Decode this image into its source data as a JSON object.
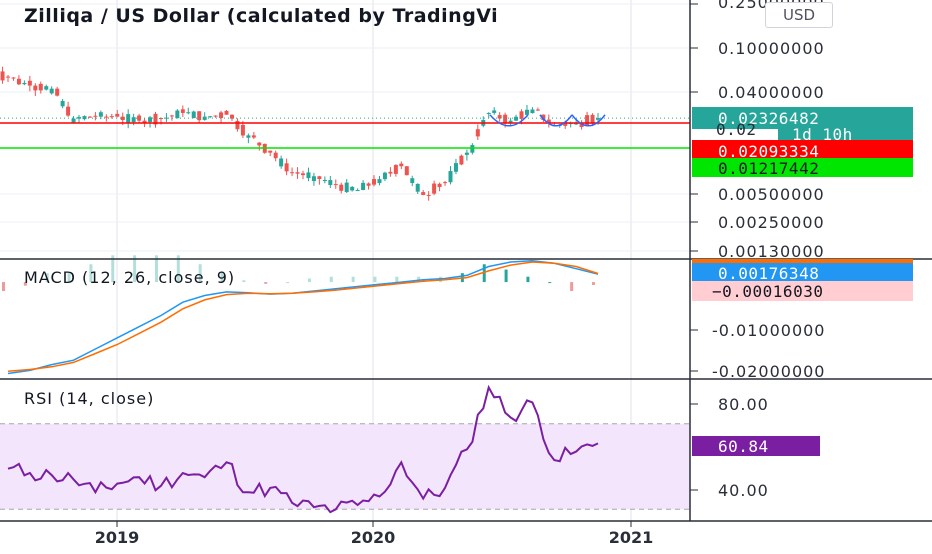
{
  "header": {
    "title": "Zilliqa / US Dollar (calculated by TradingVi",
    "currency_button": "USD"
  },
  "colors": {
    "up": "#26a69a",
    "down": "#ef5350",
    "macd_line": "#2196f3",
    "signal_line": "#ff6d00",
    "rsi_line": "#7b1fa2",
    "rsi_band": "#f3e5fb",
    "support_red": "#ff0000",
    "support_green": "#00e600",
    "arc": "#2962ff"
  },
  "price_axis": {
    "labels": [
      "0.25000000",
      "0.10000000",
      "0.04000000",
      "0.00500000",
      "0.00250000",
      "0.00130000"
    ]
  },
  "macd_axis": {
    "labels": [
      "-0.01000000",
      "-0.02000000"
    ]
  },
  "rsi_axis": {
    "labels": [
      "80.00",
      "40.00"
    ]
  },
  "time_axis": {
    "labels": [
      "2019",
      "2020",
      "2021"
    ]
  },
  "price_labels": {
    "last": "0.02326482",
    "countdown": "1d 10h",
    "red_line": "0.02093334",
    "green_line": "0.01217442",
    "partial": "0.02"
  },
  "macd": {
    "title": "MACD (12, 26, close, 9)",
    "value_label": "0.00176348",
    "hist_label": "−0.00016030"
  },
  "rsi": {
    "title": "RSI (14, close)",
    "value_label": "60.84"
  },
  "chart_data": [
    {
      "type": "candlestick",
      "title": "Zilliqa / US Dollar (calculated by TradingVi",
      "x": [
        "2018-08",
        "2018-09",
        "2018-10",
        "2018-11",
        "2018-12",
        "2019-01",
        "2019-02",
        "2019-03",
        "2019-04",
        "2019-05",
        "2019-06",
        "2019-07",
        "2019-08",
        "2019-09",
        "2019-10",
        "2019-11",
        "2019-12",
        "2020-01",
        "2020-02",
        "2020-03",
        "2020-04",
        "2020-05",
        "2020-06",
        "2020-07",
        "2020-08",
        "2020-09",
        "2020-10",
        "2020-11"
      ],
      "close": [
        0.056,
        0.047,
        0.044,
        0.023,
        0.024,
        0.024,
        0.022,
        0.023,
        0.026,
        0.024,
        0.025,
        0.016,
        0.011,
        0.0072,
        0.0066,
        0.0055,
        0.0049,
        0.0062,
        0.0082,
        0.0044,
        0.0058,
        0.011,
        0.026,
        0.022,
        0.028,
        0.02,
        0.021,
        0.02326482
      ],
      "y_scale": "log",
      "ylim": [
        0.0011,
        0.3
      ],
      "horizontal_lines": [
        0.02093334,
        0.01217442
      ]
    },
    {
      "type": "line",
      "title": "MACD (12, 26, close, 9)",
      "series": [
        {
          "name": "MACD",
          "values": [
            -0.0205,
            -0.0198,
            -0.0185,
            -0.0175,
            -0.015,
            -0.0125,
            -0.01,
            -0.0075,
            -0.0045,
            -0.003,
            -0.0022,
            -0.0024,
            -0.0027,
            -0.0025,
            -0.002,
            -0.0015,
            -0.001,
            -0.0005,
            0.0,
            0.0005,
            0.0008,
            0.0015,
            0.0035,
            0.0045,
            0.0048,
            0.0042,
            0.003,
            0.00176348
          ]
        },
        {
          "name": "Signal",
          "values": [
            -0.02,
            -0.0196,
            -0.019,
            -0.018,
            -0.016,
            -0.014,
            -0.0115,
            -0.009,
            -0.006,
            -0.004,
            -0.0028,
            -0.0025,
            -0.0026,
            -0.0025,
            -0.0022,
            -0.0018,
            -0.0013,
            -0.0008,
            -0.0003,
            0.0002,
            0.0005,
            0.001,
            0.0025,
            0.0038,
            0.0045,
            0.0042,
            0.0035,
            0.00192378
          ]
        }
      ],
      "histogram_last": -0.0001603,
      "ylim": [
        -0.0215,
        0.0045
      ]
    },
    {
      "type": "line",
      "title": "RSI (14, close)",
      "values": [
        49,
        47,
        46,
        44,
        38,
        42,
        45,
        41,
        47,
        45,
        52,
        38,
        40,
        33,
        31,
        30,
        32,
        36,
        52,
        35,
        40,
        58,
        87,
        73,
        80,
        53,
        57,
        60.84
      ],
      "band": [
        30,
        70
      ],
      "ylim": [
        25,
        90
      ]
    }
  ]
}
